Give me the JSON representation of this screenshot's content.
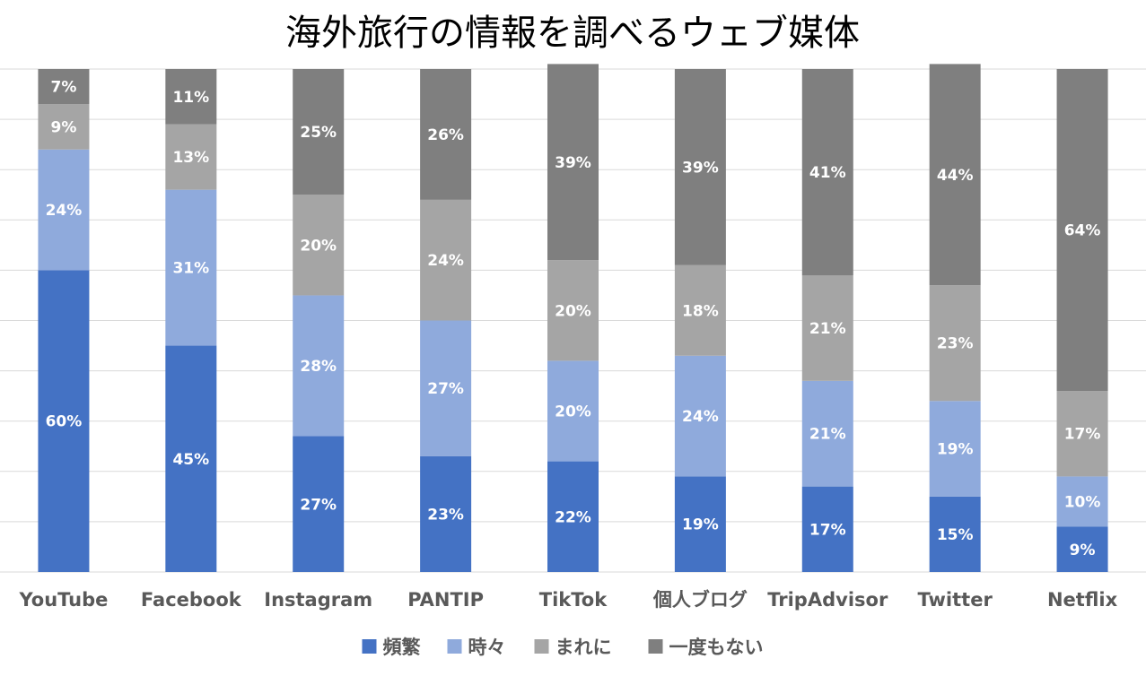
{
  "chart_data": {
    "type": "bar",
    "stacked": true,
    "percent_stacked": true,
    "title": "海外旅行の情報を調べるウェブ媒体",
    "xlabel": "",
    "ylabel": "",
    "ylim": [
      0,
      100
    ],
    "grid": true,
    "legend_position": "bottom",
    "categories": [
      "YouTube",
      "Facebook",
      "Instagram",
      "PANTIP",
      "TikTok",
      "個人ブログ",
      "TripAdvisor",
      "Twitter",
      "Netflix"
    ],
    "series": [
      {
        "name": "頻繁",
        "color": "#4472c4",
        "values": [
          60,
          45,
          27,
          23,
          22,
          19,
          17,
          15,
          9
        ],
        "labels": [
          "60%",
          "45%",
          "27%",
          "23%",
          "22%",
          "19%",
          "17%",
          "15%",
          "9%"
        ]
      },
      {
        "name": "時々",
        "color": "#8faadc",
        "values": [
          24,
          31,
          28,
          27,
          20,
          24,
          21,
          19,
          10
        ],
        "labels": [
          "24%",
          "31%",
          "28%",
          "27%",
          "20%",
          "24%",
          "21%",
          "19%",
          "10%"
        ]
      },
      {
        "name": "まれに",
        "color": "#a5a5a5",
        "values": [
          9,
          13,
          20,
          24,
          20,
          18,
          21,
          23,
          17
        ],
        "labels": [
          "9%",
          "13%",
          "20%",
          "24%",
          "20%",
          "18%",
          "21%",
          "23%",
          "17%"
        ]
      },
      {
        "name": "一度もない",
        "color": "#7f7f7f",
        "values": [
          7,
          11,
          25,
          26,
          39,
          39,
          41,
          44,
          64
        ],
        "labels": [
          "7%",
          "11%",
          "25%",
          "26%",
          "39%",
          "39%",
          "41%",
          "44%",
          "64%"
        ]
      }
    ]
  }
}
